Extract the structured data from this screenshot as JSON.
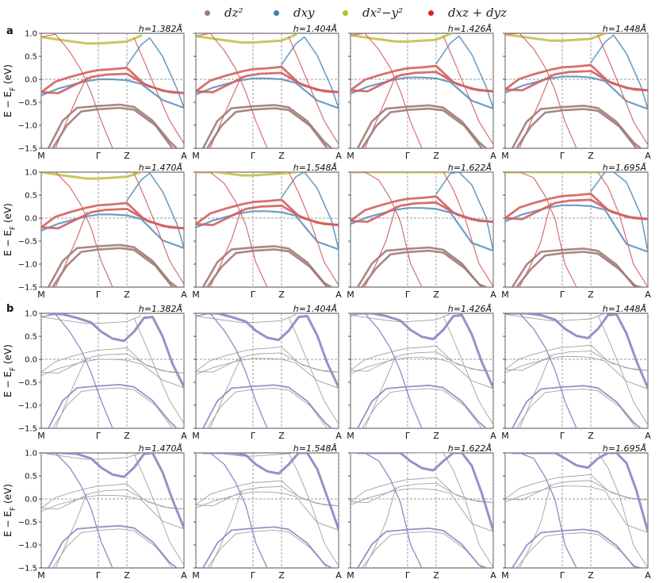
{
  "legend": [
    {
      "label": "d_{z^2}",
      "display": "dz²",
      "color": "#9e7b75"
    },
    {
      "label": "d_{xy}",
      "display": "dxy",
      "color": "#3a80b3"
    },
    {
      "label": "d_{x^2-y^2}",
      "display": "dx²−y²",
      "color": "#bcbd22"
    },
    {
      "label": "d_{xz}+d_{yz}",
      "display": "dxz + dyz",
      "color": "#d62728"
    }
  ],
  "panel_labels": {
    "a": "a",
    "b": "b"
  },
  "ylabel": "E − E_F (eV)",
  "ylabel_text": "E − E",
  "ylabel_sub": "F",
  "ylabel_unit": " (eV)",
  "colors": {
    "band_a": "#c85a5a",
    "band_b": "#9b86c4",
    "thin": "#a0a0a0",
    "dz2": "#9e7b75",
    "dxy": "#5b93bf",
    "dx2y2": "#c2c24a",
    "dxz": "#d0605f"
  },
  "chart_data": {
    "type": "line",
    "description_of_axes": "band structure",
    "ylim": [
      -1.5,
      1.0
    ],
    "yticks": [
      "1.0",
      "0.5",
      "0.0",
      "−0.5",
      "−1.0",
      "−1.5"
    ],
    "kpath": [
      "M",
      "Γ",
      "Z",
      "A"
    ],
    "kpath_positions": [
      0.0,
      0.4,
      0.6,
      1.0
    ],
    "h_values": [
      "h=1.382Å",
      "h=1.404Å",
      "h=1.426Å",
      "h=1.448Å",
      "h=1.470Å",
      "h=1.548Å",
      "h=1.622Å",
      "h=1.695Å"
    ],
    "panels_a": [
      {
        "h": "h=1.382Å",
        "shift": 0.0
      },
      {
        "h": "h=1.404Å",
        "shift": 0.02
      },
      {
        "h": "h=1.426Å",
        "shift": 0.04
      },
      {
        "h": "h=1.448Å",
        "shift": 0.06
      },
      {
        "h": "h=1.470Å",
        "shift": 0.08
      },
      {
        "h": "h=1.548Å",
        "shift": 0.15
      },
      {
        "h": "h=1.622Å",
        "shift": 0.22
      },
      {
        "h": "h=1.695Å",
        "shift": 0.28
      }
    ],
    "panels_b": [
      {
        "h": "h=1.382Å",
        "shift": 0.0
      },
      {
        "h": "h=1.404Å",
        "shift": 0.02
      },
      {
        "h": "h=1.426Å",
        "shift": 0.04
      },
      {
        "h": "h=1.448Å",
        "shift": 0.06
      },
      {
        "h": "h=1.470Å",
        "shift": 0.08
      },
      {
        "h": "h=1.548Å",
        "shift": 0.15
      },
      {
        "h": "h=1.622Å",
        "shift": 0.22
      },
      {
        "h": "h=1.695Å",
        "shift": 0.28
      }
    ],
    "bands_a": [
      {
        "orbital": "dx2y2",
        "weight": 3.0,
        "points": [
          [
            0,
            0.92
          ],
          [
            0.15,
            0.85
          ],
          [
            0.32,
            0.78
          ],
          [
            0.4,
            0.78
          ],
          [
            0.5,
            0.8
          ],
          [
            0.6,
            0.82
          ],
          [
            0.7,
            0.95
          ]
        ]
      },
      {
        "orbital": "dxy",
        "weight": 2.2,
        "points": [
          [
            0,
            -0.35
          ],
          [
            0.12,
            -0.2
          ],
          [
            0.3,
            -0.05
          ],
          [
            0.4,
            0.0
          ],
          [
            0.5,
            0.0
          ],
          [
            0.6,
            -0.02
          ],
          [
            0.7,
            -0.1
          ],
          [
            0.85,
            -0.45
          ],
          [
            1.0,
            -0.62
          ]
        ]
      },
      {
        "orbital": "dxy",
        "weight": 1.6,
        "points": [
          [
            0.6,
            0.3
          ],
          [
            0.7,
            0.75
          ],
          [
            0.76,
            0.9
          ],
          [
            0.85,
            0.5
          ],
          [
            0.95,
            -0.2
          ],
          [
            1.0,
            -0.62
          ]
        ]
      },
      {
        "orbital": "dxz",
        "weight": 2.8,
        "points": [
          [
            0,
            -0.28
          ],
          [
            0.1,
            -0.05
          ],
          [
            0.2,
            0.05
          ],
          [
            0.32,
            0.15
          ],
          [
            0.4,
            0.2
          ],
          [
            0.5,
            0.22
          ],
          [
            0.6,
            0.25
          ],
          [
            0.72,
            -0.1
          ],
          [
            0.85,
            -0.25
          ],
          [
            1.0,
            -0.3
          ]
        ]
      },
      {
        "orbital": "dxz",
        "weight": 2.8,
        "points": [
          [
            0,
            -0.28
          ],
          [
            0.12,
            -0.3
          ],
          [
            0.25,
            -0.1
          ],
          [
            0.35,
            0.05
          ],
          [
            0.45,
            0.1
          ],
          [
            0.6,
            0.12
          ],
          [
            0.75,
            -0.15
          ],
          [
            0.9,
            -0.28
          ],
          [
            1.0,
            -0.3
          ]
        ]
      },
      {
        "orbital": "dxz",
        "weight": 1.2,
        "points": [
          [
            0,
            0.92
          ],
          [
            0.1,
            0.98
          ],
          [
            0.2,
            0.6
          ],
          [
            0.28,
            0.2
          ],
          [
            0.35,
            -0.3
          ],
          [
            0.42,
            -0.9
          ],
          [
            0.5,
            -1.5
          ]
        ]
      },
      {
        "orbital": "dxz",
        "weight": 1.2,
        "points": [
          [
            0.1,
            -1.5
          ],
          [
            0.18,
            -0.9
          ],
          [
            0.25,
            -0.4
          ],
          [
            0.32,
            0.05
          ]
        ]
      },
      {
        "orbital": "dxz",
        "weight": 1.2,
        "points": [
          [
            0.65,
            0.9
          ],
          [
            0.72,
            0.4
          ],
          [
            0.8,
            -0.2
          ],
          [
            0.9,
            -0.9
          ],
          [
            1.0,
            -1.4
          ]
        ]
      },
      {
        "orbital": "dz2",
        "weight": 2.6,
        "points": [
          [
            0.05,
            -1.5
          ],
          [
            0.15,
            -0.9
          ],
          [
            0.25,
            -0.62
          ],
          [
            0.4,
            -0.58
          ],
          [
            0.55,
            -0.55
          ],
          [
            0.65,
            -0.6
          ],
          [
            0.78,
            -0.9
          ],
          [
            0.9,
            -1.35
          ],
          [
            0.95,
            -1.5
          ]
        ]
      },
      {
        "orbital": "dz2",
        "weight": 2.6,
        "points": [
          [
            0.08,
            -1.5
          ],
          [
            0.18,
            -1.0
          ],
          [
            0.28,
            -0.7
          ],
          [
            0.4,
            -0.65
          ],
          [
            0.55,
            -0.62
          ],
          [
            0.65,
            -0.66
          ],
          [
            0.8,
            -1.0
          ],
          [
            0.92,
            -1.5
          ]
        ]
      }
    ],
    "bands_b_thin": [
      {
        "points": [
          [
            0,
            0.92
          ],
          [
            0.15,
            0.85
          ],
          [
            0.32,
            0.78
          ],
          [
            0.4,
            0.78
          ],
          [
            0.5,
            0.8
          ],
          [
            0.6,
            0.82
          ],
          [
            0.7,
            0.95
          ]
        ]
      },
      {
        "points": [
          [
            0,
            -0.35
          ],
          [
            0.12,
            -0.2
          ],
          [
            0.3,
            -0.05
          ],
          [
            0.4,
            0.0
          ],
          [
            0.5,
            0.0
          ],
          [
            0.6,
            -0.02
          ],
          [
            0.7,
            -0.1
          ],
          [
            0.85,
            -0.45
          ],
          [
            1.0,
            -0.62
          ]
        ]
      },
      {
        "points": [
          [
            0,
            -0.28
          ],
          [
            0.1,
            -0.05
          ],
          [
            0.2,
            0.05
          ],
          [
            0.32,
            0.15
          ],
          [
            0.4,
            0.2
          ],
          [
            0.5,
            0.22
          ],
          [
            0.6,
            0.25
          ],
          [
            0.72,
            -0.1
          ],
          [
            0.85,
            -0.25
          ],
          [
            1.0,
            -0.3
          ]
        ]
      },
      {
        "points": [
          [
            0,
            -0.28
          ],
          [
            0.12,
            -0.3
          ],
          [
            0.25,
            -0.1
          ],
          [
            0.35,
            0.05
          ],
          [
            0.45,
            0.1
          ],
          [
            0.6,
            0.12
          ],
          [
            0.75,
            -0.15
          ],
          [
            0.9,
            -0.28
          ],
          [
            1.0,
            -0.3
          ]
        ]
      },
      {
        "points": [
          [
            0.1,
            -1.5
          ],
          [
            0.18,
            -0.9
          ],
          [
            0.25,
            -0.4
          ],
          [
            0.32,
            0.05
          ]
        ]
      },
      {
        "points": [
          [
            0.65,
            0.9
          ],
          [
            0.72,
            0.4
          ],
          [
            0.8,
            -0.2
          ],
          [
            0.9,
            -0.9
          ],
          [
            1.0,
            -1.4
          ]
        ]
      },
      {
        "points": [
          [
            0.08,
            -1.5
          ],
          [
            0.18,
            -1.0
          ],
          [
            0.28,
            -0.7
          ],
          [
            0.4,
            -0.65
          ],
          [
            0.55,
            -0.62
          ],
          [
            0.65,
            -0.66
          ],
          [
            0.8,
            -1.0
          ],
          [
            0.92,
            -1.5
          ]
        ]
      }
    ],
    "bands_b_highlight": [
      {
        "weight": 3.0,
        "points": [
          [
            0.05,
            1.0
          ],
          [
            0.15,
            0.98
          ],
          [
            0.25,
            0.9
          ],
          [
            0.35,
            0.8
          ],
          [
            0.42,
            0.6
          ],
          [
            0.5,
            0.45
          ],
          [
            0.58,
            0.4
          ],
          [
            0.65,
            0.6
          ],
          [
            0.72,
            0.9
          ],
          [
            0.78,
            0.92
          ],
          [
            0.85,
            0.5
          ],
          [
            0.92,
            -0.1
          ],
          [
            1.0,
            -0.6
          ]
        ]
      },
      {
        "weight": 1.8,
        "points": [
          [
            0.05,
            -1.5
          ],
          [
            0.15,
            -0.9
          ],
          [
            0.25,
            -0.62
          ],
          [
            0.4,
            -0.58
          ],
          [
            0.55,
            -0.55
          ],
          [
            0.65,
            -0.6
          ],
          [
            0.78,
            -0.9
          ],
          [
            0.9,
            -1.35
          ],
          [
            0.95,
            -1.5
          ]
        ]
      },
      {
        "weight": 1.4,
        "points": [
          [
            0,
            0.92
          ],
          [
            0.1,
            0.98
          ],
          [
            0.2,
            0.6
          ],
          [
            0.28,
            0.2
          ],
          [
            0.35,
            -0.3
          ],
          [
            0.42,
            -0.9
          ],
          [
            0.5,
            -1.5
          ]
        ]
      }
    ]
  }
}
